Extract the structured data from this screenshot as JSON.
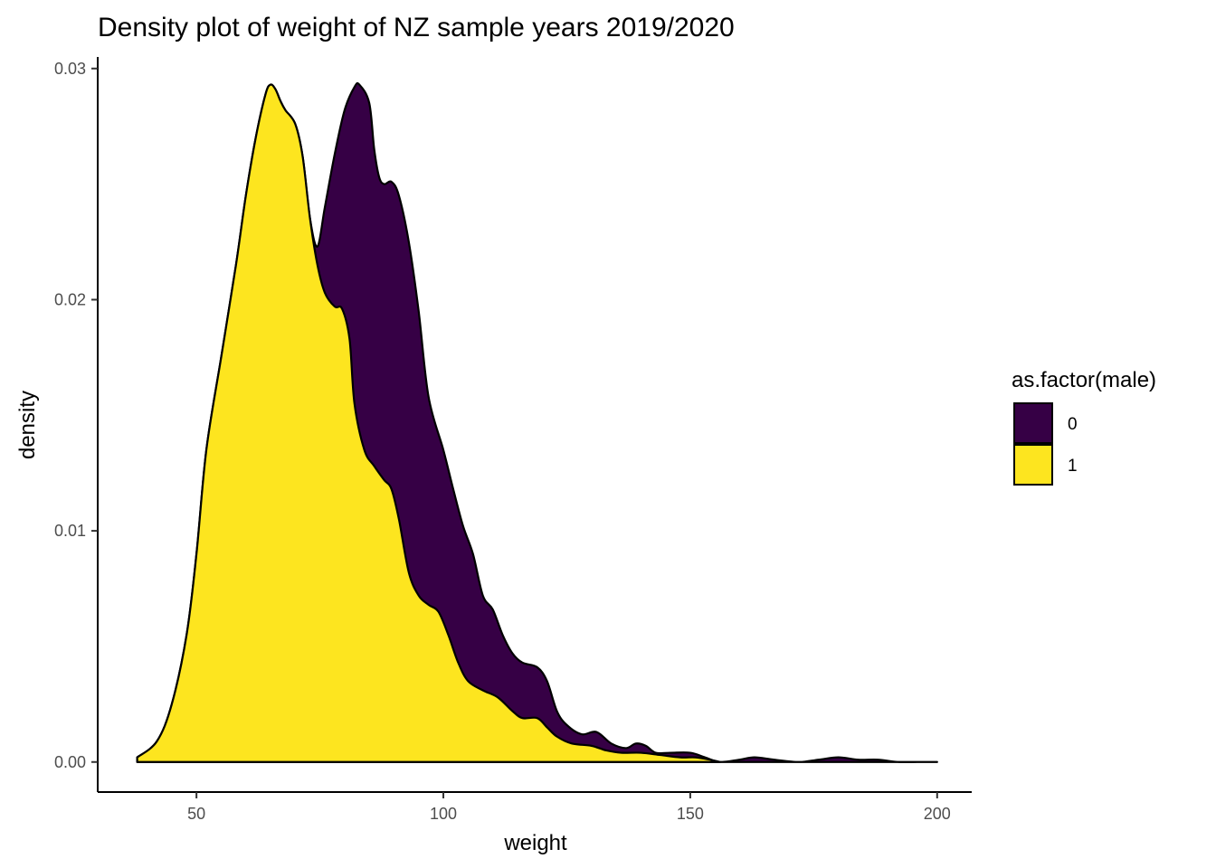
{
  "chart_data": {
    "type": "area",
    "subtype": "stacked-density",
    "title": "Density plot of weight of NZ sample years 2019/2020",
    "xlabel": "weight",
    "ylabel": "density",
    "xlim": [
      30,
      207
    ],
    "ylim": [
      -0.0013,
      0.0305
    ],
    "x_ticks": [
      50,
      100,
      150,
      200
    ],
    "x_tick_labels": [
      "50",
      "100",
      "150",
      "200"
    ],
    "y_ticks": [
      0.0,
      0.01,
      0.02,
      0.03
    ],
    "y_tick_labels": [
      "0.00",
      "0.01",
      "0.02",
      "0.03"
    ],
    "grid": false,
    "legend": {
      "title": "as.factor(male)",
      "position": "right"
    },
    "series": [
      {
        "name": "0",
        "color": "#360045",
        "stacked_top": [
          [
            38,
            0.0002
          ],
          [
            42,
            0.0009
          ],
          [
            45,
            0.0025
          ],
          [
            48,
            0.0055
          ],
          [
            50,
            0.009
          ],
          [
            52,
            0.0135
          ],
          [
            55,
            0.0175
          ],
          [
            58,
            0.0215
          ],
          [
            60,
            0.0245
          ],
          [
            62,
            0.027
          ],
          [
            64,
            0.0289
          ],
          [
            65,
            0.0293
          ],
          [
            66,
            0.0291
          ],
          [
            67,
            0.0286
          ],
          [
            68,
            0.0282
          ],
          [
            70,
            0.0276
          ],
          [
            71.5,
            0.0262
          ],
          [
            73,
            0.0235
          ],
          [
            74.5,
            0.0223
          ],
          [
            76,
            0.024
          ],
          [
            78,
            0.0263
          ],
          [
            80,
            0.0282
          ],
          [
            82,
            0.0292
          ],
          [
            83,
            0.0293
          ],
          [
            85,
            0.0285
          ],
          [
            86,
            0.0265
          ],
          [
            87,
            0.0253
          ],
          [
            88,
            0.025
          ],
          [
            89.5,
            0.0251
          ],
          [
            91,
            0.0245
          ],
          [
            93,
            0.0225
          ],
          [
            95,
            0.0195
          ],
          [
            97,
            0.0158
          ],
          [
            100,
            0.0135
          ],
          [
            102,
            0.0118
          ],
          [
            104,
            0.0102
          ],
          [
            106,
            0.009
          ],
          [
            108,
            0.0072
          ],
          [
            110,
            0.0066
          ],
          [
            112,
            0.0055
          ],
          [
            114,
            0.0047
          ],
          [
            116,
            0.0043
          ],
          [
            119,
            0.0041
          ],
          [
            121,
            0.0035
          ],
          [
            123,
            0.0022
          ],
          [
            125,
            0.0016
          ],
          [
            128,
            0.0012
          ],
          [
            131,
            0.0013
          ],
          [
            134,
            0.0008
          ],
          [
            137,
            0.0006
          ],
          [
            139,
            0.0008
          ],
          [
            141,
            0.0007
          ],
          [
            143,
            0.0004
          ],
          [
            146,
            0.0004
          ],
          [
            150,
            0.0004
          ],
          [
            153,
            0.0002
          ],
          [
            156,
            0.0
          ],
          [
            160,
            0.0001
          ],
          [
            163,
            0.0002
          ],
          [
            167,
            0.0001
          ],
          [
            172,
            0.0
          ],
          [
            176,
            0.0001
          ],
          [
            180,
            0.0002
          ],
          [
            184,
            0.0001
          ],
          [
            188,
            0.0001
          ],
          [
            192,
            0.0
          ],
          [
            196,
            0.0
          ],
          [
            200,
            0.0
          ]
        ]
      },
      {
        "name": "1",
        "color": "#fde51f",
        "values": [
          [
            38,
            0.0002
          ],
          [
            42,
            0.0009
          ],
          [
            45,
            0.0025
          ],
          [
            48,
            0.0055
          ],
          [
            50,
            0.009
          ],
          [
            52,
            0.0135
          ],
          [
            55,
            0.0175
          ],
          [
            58,
            0.0215
          ],
          [
            60,
            0.0245
          ],
          [
            62,
            0.027
          ],
          [
            64,
            0.0289
          ],
          [
            65,
            0.0293
          ],
          [
            66,
            0.0291
          ],
          [
            67,
            0.0286
          ],
          [
            68,
            0.0282
          ],
          [
            70,
            0.0276
          ],
          [
            71.5,
            0.0262
          ],
          [
            73,
            0.0235
          ],
          [
            74.5,
            0.0215
          ],
          [
            76,
            0.0203
          ],
          [
            78,
            0.0197
          ],
          [
            79.5,
            0.0196
          ],
          [
            81,
            0.0183
          ],
          [
            82,
            0.0155
          ],
          [
            84,
            0.0135
          ],
          [
            86,
            0.0128
          ],
          [
            88,
            0.0122
          ],
          [
            89.5,
            0.0118
          ],
          [
            91,
            0.0105
          ],
          [
            93,
            0.0082
          ],
          [
            95,
            0.0072
          ],
          [
            97,
            0.0068
          ],
          [
            99,
            0.0065
          ],
          [
            101,
            0.0055
          ],
          [
            103,
            0.0043
          ],
          [
            105,
            0.0035
          ],
          [
            108,
            0.0031
          ],
          [
            111,
            0.0028
          ],
          [
            114,
            0.0022
          ],
          [
            116,
            0.0019
          ],
          [
            119,
            0.0019
          ],
          [
            121,
            0.0015
          ],
          [
            123,
            0.0011
          ],
          [
            126,
            0.0008
          ],
          [
            130,
            0.0007
          ],
          [
            133,
            0.0005
          ],
          [
            136,
            0.0004
          ],
          [
            140,
            0.0004
          ],
          [
            144,
            0.0003
          ],
          [
            148,
            0.0002
          ],
          [
            151,
            0.0002
          ],
          [
            154,
            0.0001
          ],
          [
            156,
            0.0
          ]
        ]
      }
    ]
  }
}
